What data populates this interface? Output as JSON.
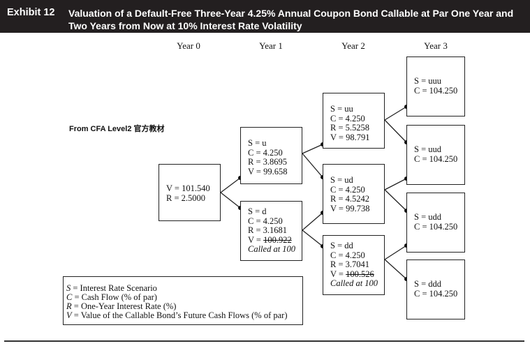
{
  "header": {
    "label": "Exhibit 12",
    "title": "Valuation of a Default-Free Three-Year 4.25% Annual Coupon Bond Callable at Par One Year and Two Years from Now at 10% Interest Rate Volatility"
  },
  "columns": [
    "Year 0",
    "Year 1",
    "Year 2",
    "Year 3"
  ],
  "source_note": "From CFA Level2 官方教材",
  "nodes": {
    "root": {
      "v": "V = 101.540",
      "r": "R = 2.5000"
    },
    "u": {
      "s": "S = u",
      "c": "C = 4.250",
      "r": "R = 3.8695",
      "v": "V = 99.658"
    },
    "d": {
      "s": "S = d",
      "c": "C = 4.250",
      "r": "R = 3.1681",
      "v_prefix": "V = ",
      "v_struck": "100.922",
      "called": "Called at 100"
    },
    "uu": {
      "s": "S = uu",
      "c": "C = 4.250",
      "r": "R = 5.5258",
      "v": "V = 98.791"
    },
    "ud": {
      "s": "S = ud",
      "c": "C = 4.250",
      "r": "R = 4.5242",
      "v": "V = 99.738"
    },
    "dd": {
      "s": "S = dd",
      "c": "C = 4.250",
      "r": "R = 3.7041",
      "v_prefix": "V = ",
      "v_struck": "100.526",
      "called": "Called at 100"
    },
    "uuu": {
      "s": "S = uuu",
      "c": "C = 104.250"
    },
    "uud": {
      "s": "S = uud",
      "c": "C = 104.250"
    },
    "udd": {
      "s": "S = udd",
      "c": "C = 104.250"
    },
    "ddd": {
      "s": "S = ddd",
      "c": "C = 104.250"
    }
  },
  "legend": [
    {
      "sym": "S",
      "text": " = Interest Rate Scenario"
    },
    {
      "sym": "C",
      "text": " = Cash Flow (% of par)"
    },
    {
      "sym": "R",
      "text": " = One-Year Interest Rate (%)"
    },
    {
      "sym": "V",
      "text": " = Value of the Callable Bond’s Future Cash Flows (% of par)"
    }
  ]
}
